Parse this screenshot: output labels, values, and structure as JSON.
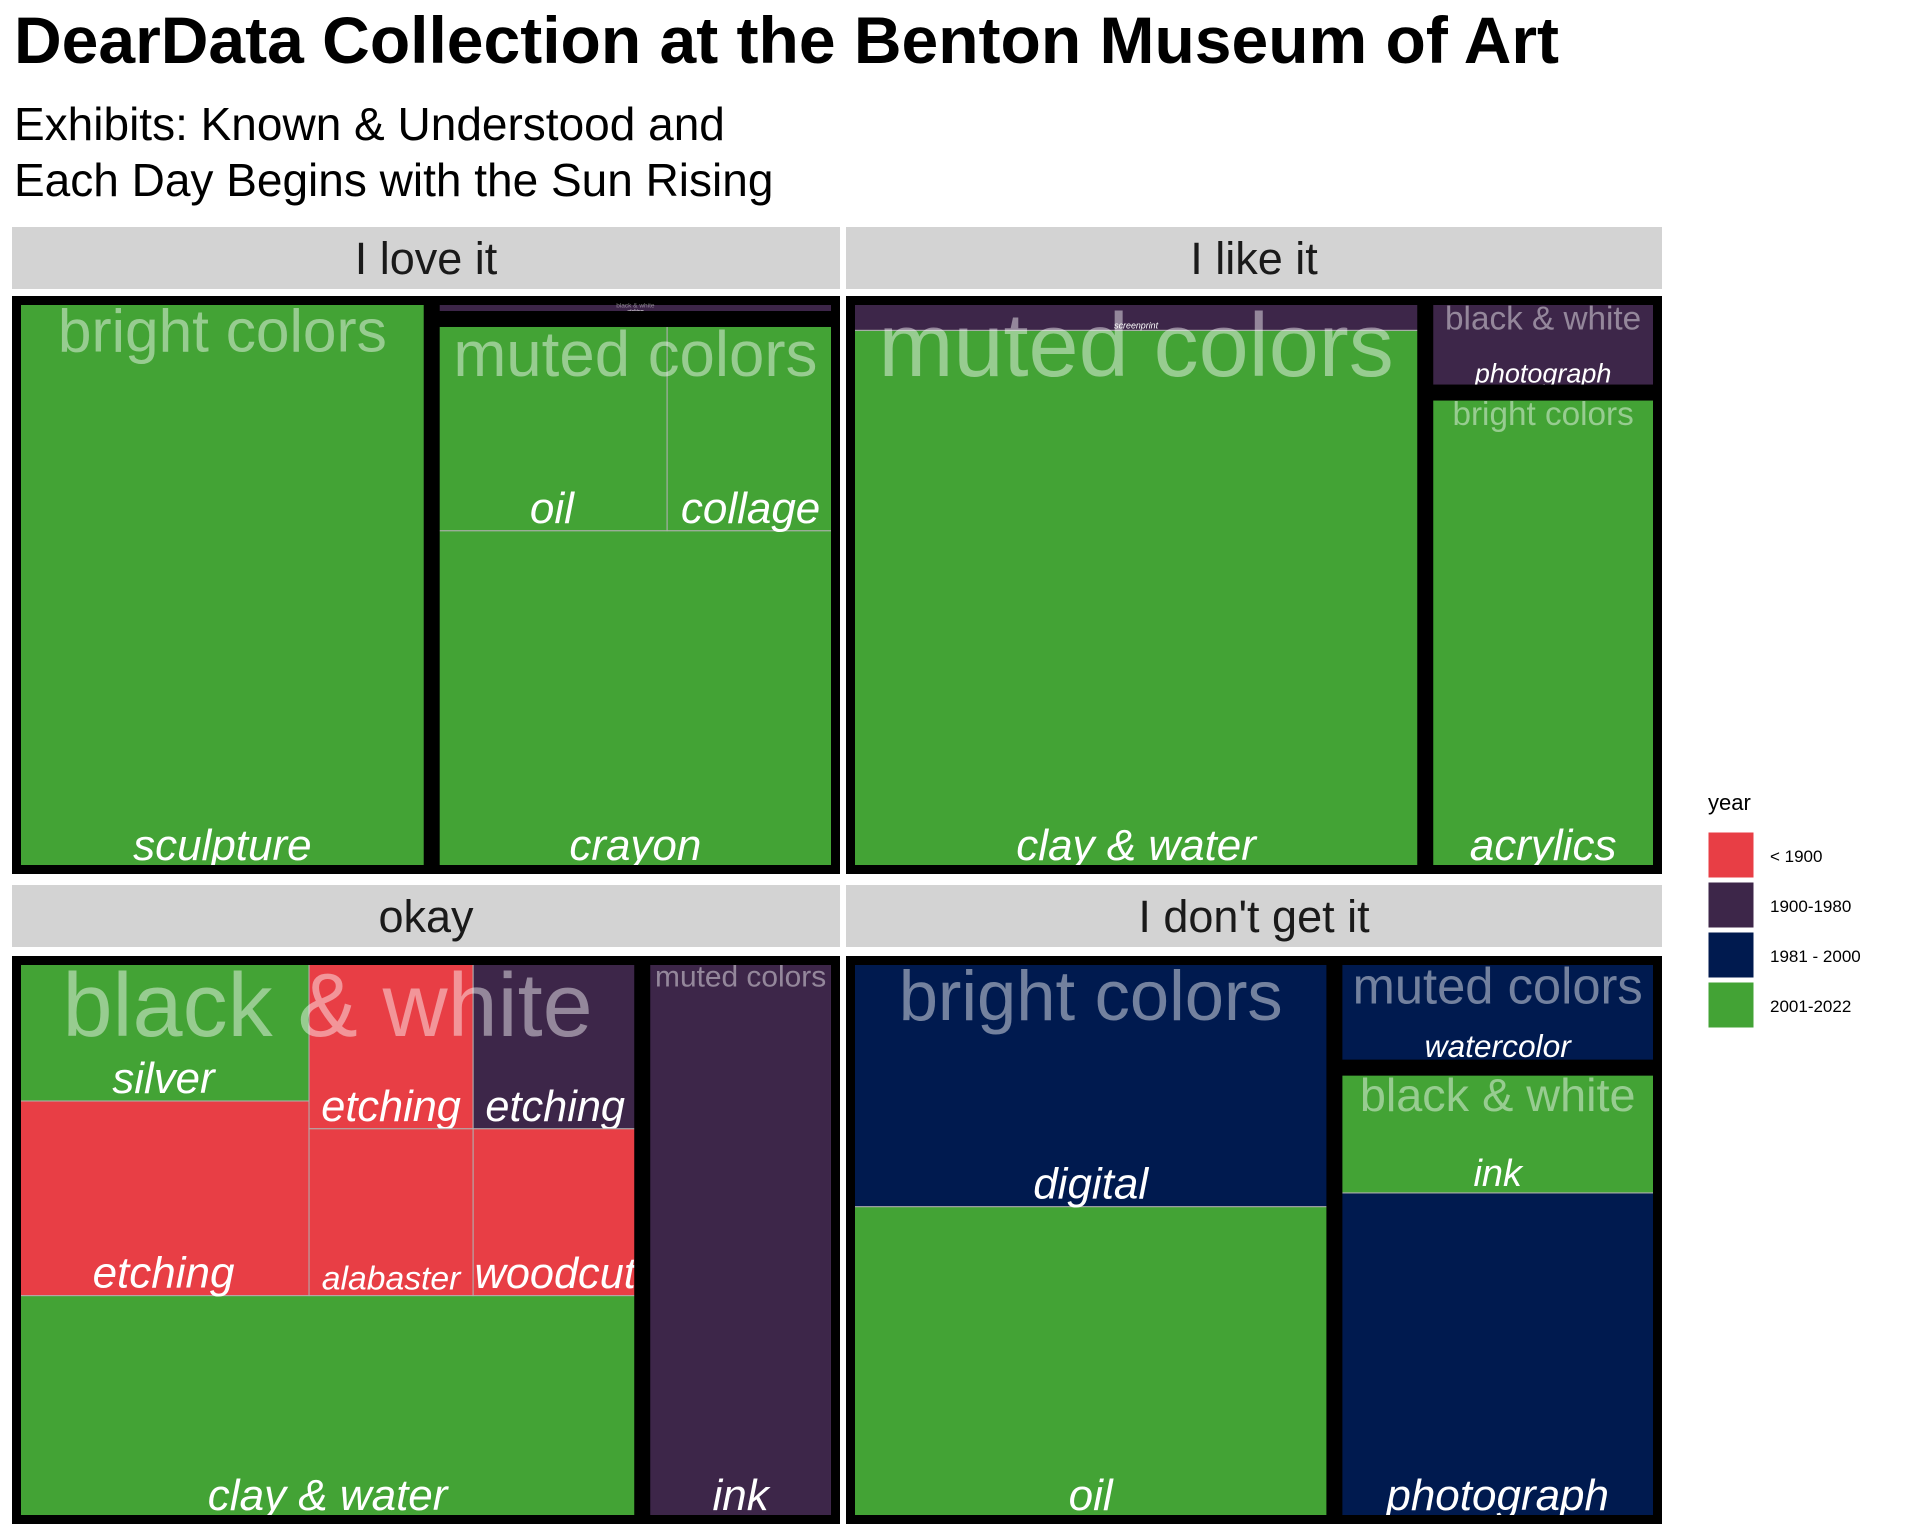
{
  "title": "DearData Collection at the Benton Museum of Art",
  "subtitle_lines": [
    "Exhibits: Known & Understood and",
    "Each Day Begins with the Sun Rising"
  ],
  "chart_data": {
    "type": "treemap",
    "facet_variable": "reaction",
    "group_variable": "color",
    "subgroup_variable": "medium",
    "fill_variable": "year",
    "colors": {
      "< 1900": "#E83E45",
      "1900-1980": "#3D2649",
      "1981 - 2000": "#001A4F",
      "2001-2022": "#43A335"
    },
    "legend": {
      "title": "year",
      "position": "right",
      "items": [
        "< 1900",
        "1900-1980",
        "1981 - 2000",
        "2001-2022"
      ]
    },
    "facets": [
      {
        "label": "I love it",
        "groups": [
          {
            "label": "bright colors",
            "tiles": [
              {
                "medium": "sculpture",
                "year": "2001-2022",
                "area": 0.507
              }
            ]
          },
          {
            "label": "muted colors",
            "tiles": [
              {
                "medium": "crayon",
                "year": "2001-2022",
                "area": 0.275
              },
              {
                "medium": "oil",
                "year": "2001-2022",
                "area": 0.118
              },
              {
                "medium": "collage",
                "year": "2001-2022",
                "area": 0.085
              }
            ]
          },
          {
            "label": "black & white",
            "tiles": [
              {
                "medium": "etching",
                "year": "1900-1980",
                "area": 0.015
              }
            ]
          }
        ]
      },
      {
        "label": "I like it",
        "groups": [
          {
            "label": "muted colors",
            "tiles": [
              {
                "medium": "clay & water",
                "year": "2001-2022",
                "area": 0.679
              },
              {
                "medium": "screenprint",
                "year": "1900-1980",
                "area": 0.036
              }
            ]
          },
          {
            "label": "bright colors",
            "tiles": [
              {
                "medium": "acrylics",
                "year": "2001-2022",
                "area": 0.237
              }
            ]
          },
          {
            "label": "black & white",
            "tiles": [
              {
                "medium": "photograph",
                "year": "1900-1980",
                "area": 0.048
              }
            ]
          }
        ]
      },
      {
        "label": "okay",
        "groups": [
          {
            "label": "black & white",
            "tiles": [
              {
                "medium": "clay & water",
                "year": "2001-2022",
                "area": 0.298
              },
              {
                "medium": "etching",
                "year": "< 1900",
                "area": 0.161
              },
              {
                "medium": "silver",
                "year": "2001-2022",
                "area": 0.116
              },
              {
                "medium": "etching",
                "year": "< 1900",
                "area": 0.046
              },
              {
                "medium": "etching",
                "year": "1900-1980",
                "area": 0.046
              },
              {
                "medium": "alabaster",
                "year": "< 1900",
                "area": 0.061
              },
              {
                "medium": "woodcut",
                "year": "< 1900",
                "area": 0.061
              }
            ]
          },
          {
            "label": "muted colors",
            "tiles": [
              {
                "medium": "ink",
                "year": "1900-1980",
                "area": 0.211
              }
            ]
          }
        ]
      },
      {
        "label": "I don't get it",
        "groups": [
          {
            "label": "bright colors",
            "tiles": [
              {
                "medium": "oil",
                "year": "2001-2022",
                "area": 0.365
              },
              {
                "medium": "digital",
                "year": "1981 - 2000",
                "area": 0.266
              }
            ]
          },
          {
            "label": "black & white",
            "tiles": [
              {
                "medium": "photograph",
                "year": "1981 - 2000",
                "area": 0.213
              },
              {
                "medium": "ink",
                "year": "2001-2022",
                "area": 0.092
              }
            ]
          },
          {
            "label": "muted colors",
            "tiles": [
              {
                "medium": "watercolor",
                "year": "1981 - 2000",
                "area": 0.063
              }
            ]
          }
        ]
      }
    ]
  }
}
